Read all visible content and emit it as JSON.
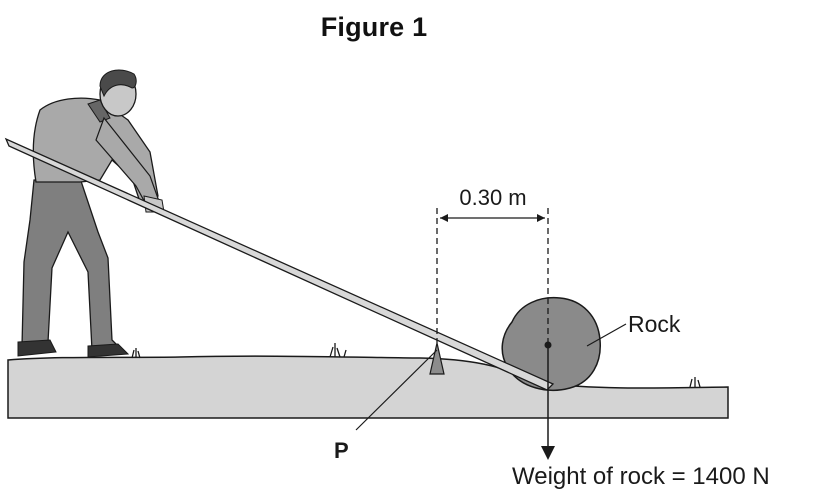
{
  "figure": {
    "title": "Figure 1",
    "distance_label": "0.30 m",
    "rock_label": "Rock",
    "pivot_label": "P",
    "weight_label": "Weight of rock = 1400 N"
  },
  "colors": {
    "ground": "#d4d4d4",
    "rock": "#8a8a8a",
    "ink": "#1a1a1a",
    "clothing": "#a9a9a9",
    "trousers": "#7f7f7f"
  }
}
